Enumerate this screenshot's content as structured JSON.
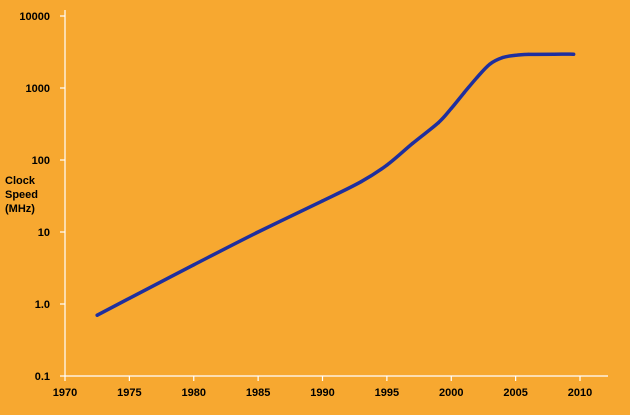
{
  "colors": {
    "background": "#F7A830",
    "line": "#1F2F9E",
    "axis": "#FFFFFF",
    "text": "#000000"
  },
  "chart_data": {
    "type": "line",
    "title": "",
    "xlabel": "",
    "ylabel_lines": [
      "Clock",
      "Speed",
      "(MHz)"
    ],
    "y_scale": "log",
    "xlim": [
      1970,
      2010
    ],
    "ylim": [
      0.1,
      10000
    ],
    "x_ticks": [
      1970,
      1975,
      1980,
      1985,
      1990,
      1995,
      2000,
      2005,
      2010
    ],
    "y_ticks": [
      {
        "value": 0.1,
        "label": "0.1"
      },
      {
        "value": 1,
        "label": "1.0"
      },
      {
        "value": 10,
        "label": "10"
      },
      {
        "value": 100,
        "label": "100"
      },
      {
        "value": 1000,
        "label": "1000"
      },
      {
        "value": 10000,
        "label": "10000"
      }
    ],
    "grid": false,
    "legend": "none",
    "series": [
      {
        "x": [
          1972.5,
          1975,
          1980,
          1985,
          1990,
          1993,
          1995,
          1997,
          1999,
          2000,
          2001,
          2002,
          2003,
          2004,
          2005,
          2006,
          2008,
          2009.5
        ],
        "y": [
          0.7,
          1.2,
          3.5,
          10,
          27,
          50,
          85,
          170,
          330,
          520,
          860,
          1400,
          2150,
          2650,
          2850,
          2930,
          2950,
          2950
        ]
      }
    ]
  }
}
